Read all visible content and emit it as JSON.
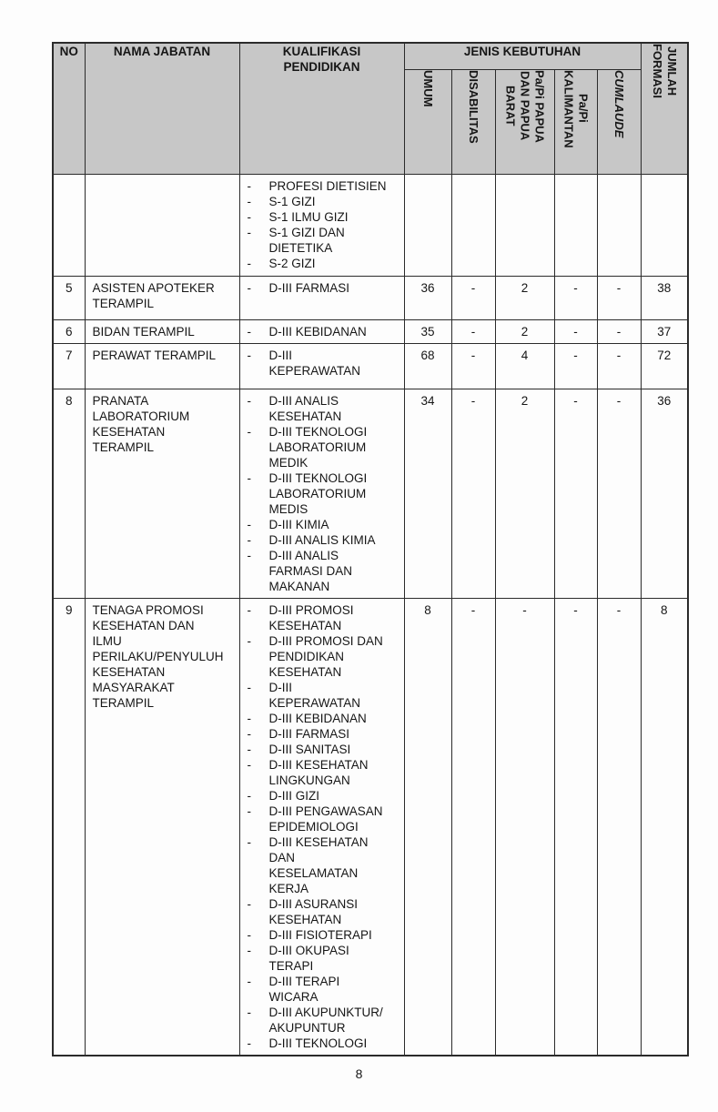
{
  "page": {
    "number": "8"
  },
  "colors": {
    "header_bg": "#c7c7c7",
    "border": "#2b2b2b",
    "page_bg": "#fdfdfd",
    "text": "#161616"
  },
  "table": {
    "header": {
      "no": "NO",
      "nama_jabatan": "NAMA JABATAN",
      "kualifikasi_pendidikan": "KUALIFIKASI\nPENDIDIKAN",
      "jenis_kebutuhan": "JENIS KEBUTUHAN",
      "jumlah_formasi": "JUMLAH\nFORMASI",
      "sub": [
        {
          "label": "UMUM"
        },
        {
          "label": "DISABILITAS"
        },
        {
          "label": "Pa/Pi PAPUA\nDAN PAPUA\nBARAT"
        },
        {
          "label": "Pa/Pi\nKALIMANTAN"
        },
        {
          "label": "CUMLAUDE"
        }
      ]
    },
    "rows": [
      {
        "no": "",
        "nama": "",
        "kualifikasi": [
          "PROFESI DIETISIEN",
          "S-1 GIZI",
          "S-1 ILMU GIZI",
          "S-1 GIZI DAN\nDIETETIKA",
          "S-2 GIZI"
        ],
        "umum": "",
        "disabilitas": "",
        "papua": "",
        "kalimantan": "",
        "cumlaude": "",
        "jumlah": ""
      },
      {
        "no": "5",
        "nama": "ASISTEN APOTEKER\nTERAMPIL",
        "kualifikasi": [
          "D-III FARMASI"
        ],
        "umum": "36",
        "disabilitas": "-",
        "papua": "2",
        "kalimantan": "-",
        "cumlaude": "-",
        "jumlah": "38"
      },
      {
        "no": "6",
        "nama": "BIDAN TERAMPIL",
        "kualifikasi": [
          "D-III KEBIDANAN"
        ],
        "umum": "35",
        "disabilitas": "-",
        "papua": "2",
        "kalimantan": "-",
        "cumlaude": "-",
        "jumlah": "37"
      },
      {
        "no": "7",
        "nama": "PERAWAT TERAMPIL",
        "kualifikasi": [
          "D-III\nKEPERAWATAN"
        ],
        "umum": "68",
        "disabilitas": "-",
        "papua": "4",
        "kalimantan": "-",
        "cumlaude": "-",
        "jumlah": "72"
      },
      {
        "no": "8",
        "nama": "PRANATA\nLABORATORIUM\nKESEHATAN\nTERAMPIL",
        "kualifikasi": [
          "D-III ANALIS\nKESEHATAN",
          "D-III TEKNOLOGI\nLABORATORIUM\nMEDIK",
          "D-III TEKNOLOGI\nLABORATORIUM\nMEDIS",
          "D-III KIMIA",
          "D-III ANALIS KIMIA",
          "D-III ANALIS\nFARMASI DAN\nMAKANAN"
        ],
        "umum": "34",
        "disabilitas": "-",
        "papua": "2",
        "kalimantan": "-",
        "cumlaude": "-",
        "jumlah": "36"
      },
      {
        "no": "9",
        "nama": "TENAGA PROMOSI\nKESEHATAN DAN\nILMU\nPERILAKU/PENYULUH\nKESEHATAN\nMASYARAKAT\nTERAMPIL",
        "kualifikasi": [
          "D-III PROMOSI\nKESEHATAN",
          "D-III PROMOSI DAN\nPENDIDIKAN\nKESEHATAN",
          "D-III\nKEPERAWATAN",
          "D-III KEBIDANAN",
          "D-III FARMASI",
          "D-III SANITASI",
          "D-III KESEHATAN\nLINGKUNGAN",
          "D-III GIZI",
          "D-III PENGAWASAN\nEPIDEMIOLOGI",
          "D-III KESEHATAN\nDAN\nKESELAMATAN\nKERJA",
          "D-III ASURANSI\nKESEHATAN",
          "D-III FISIOTERAPI",
          "D-III OKUPASI\nTERAPI",
          "D-III TERAPI\nWICARA",
          "D-III AKUPUNKTUR/\nAKUPUNTUR",
          "D-III TEKNOLOGI"
        ],
        "umum": "8",
        "disabilitas": "-",
        "papua": "-",
        "kalimantan": "-",
        "cumlaude": "-",
        "jumlah": "8"
      }
    ]
  }
}
